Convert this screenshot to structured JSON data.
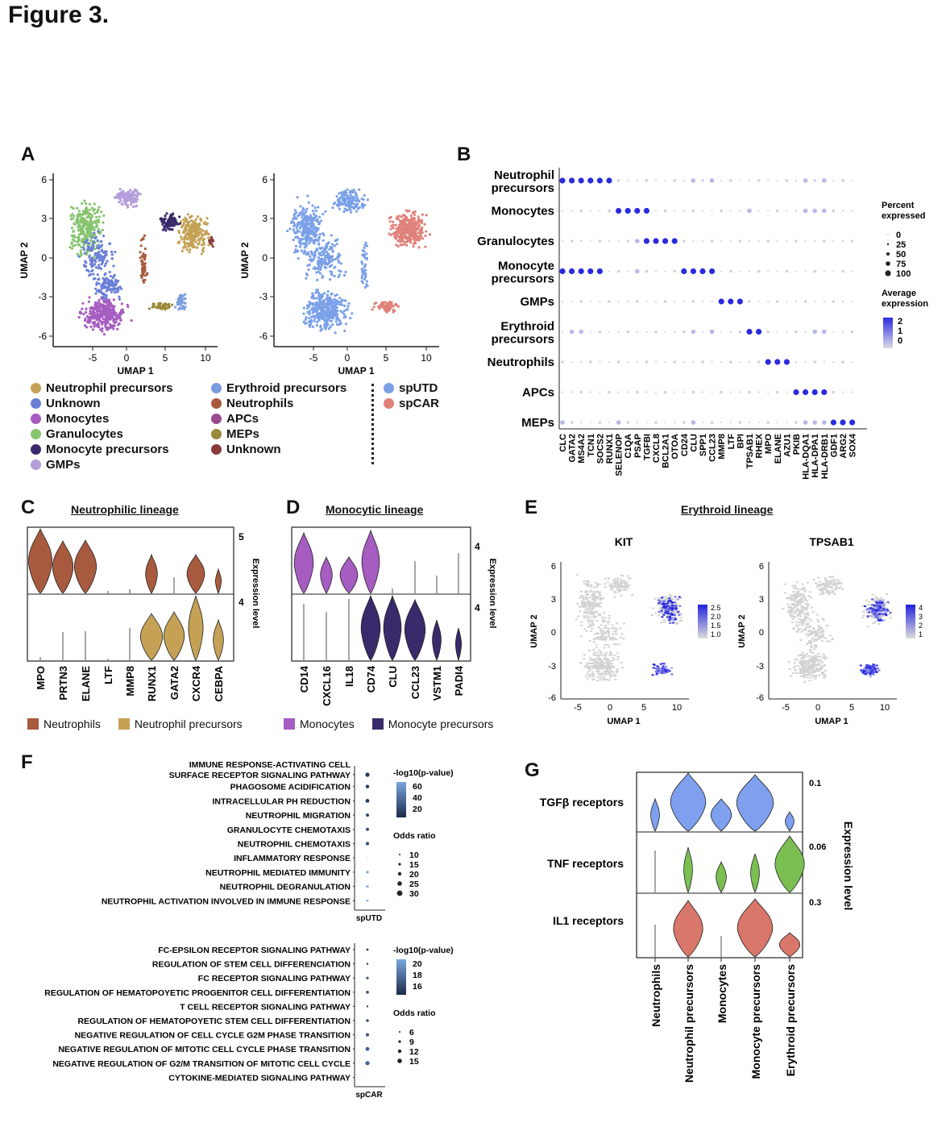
{
  "figure_title": "Figure 3.",
  "panel_labels": {
    "a": "A",
    "b": "B",
    "c": "C",
    "d": "D",
    "e": "E",
    "f": "F",
    "g": "G"
  },
  "colors": {
    "neutrophil_precursors": "#c4a155",
    "unknown": "#6a7fd6",
    "monocytes": "#a65cc1",
    "granulocytes": "#86c46f",
    "monocyte_precursors": "#3a2a6b",
    "gmps": "#b39ddb",
    "erythroid_precursors": "#7a9de0",
    "neutrophils": "#a85a3e",
    "apcs": "#9c4a8f",
    "meps": "#9a8a3a",
    "unknown2": "#8a3a3a",
    "sputd": "#7aa0e8",
    "spcar": "#e0827a",
    "violin_blue": "#7ea0ee",
    "violin_green": "#7bbf52",
    "violin_red": "#d9776a",
    "feature_gray": "#d3d3d3",
    "feature_blue": "#2222dd"
  },
  "panel_a": {
    "umap_axis": {
      "xlabel": "UMAP 1",
      "ylabel": "UMAP 2",
      "xticks": [
        "-5",
        "0",
        "5",
        "10"
      ],
      "yticks": [
        "6",
        "3",
        "0",
        "-3",
        "-6"
      ]
    },
    "legend_clusters_col1": [
      "Neutrophil precursors",
      "Unknown",
      "Monocytes",
      "Granulocytes",
      "Monocyte precursors",
      "GMPs"
    ],
    "legend_clusters_col2": [
      "Erythroid precursors",
      "Neutrophils",
      "APCs",
      "MEPs",
      "Unknown"
    ],
    "legend_samples": [
      "spUTD",
      "spCAR"
    ]
  },
  "panel_b": {
    "rows": [
      "Neutrophil precursors",
      "Monocytes",
      "Granulocytes",
      "Monocyte precursors",
      "GMPs",
      "Erythroid precursors",
      "Neutrophils",
      "APCs",
      "MEPs"
    ],
    "genes": [
      "CLC",
      "GATA2",
      "MS4A2",
      "TCN1",
      "SOCS2",
      "RUNX1",
      "SELENOP",
      "C1QA",
      "PSAP",
      "TGFBI",
      "CXCL8",
      "BCL2A1",
      "OTOA",
      "CD24",
      "CLU",
      "SPP1",
      "CCL23",
      "MMP8",
      "LTF",
      "BPI",
      "TPSAB1",
      "RHEX",
      "MPO",
      "ELANE",
      "AZU1",
      "PKIB",
      "HLA-DQA1",
      "HLA-DPA1",
      "HLA-DRB1",
      "GDF1",
      "ARG2",
      "SOX4"
    ],
    "size_legend_title": "Percent expressed",
    "size_legend": [
      "0",
      "25",
      "50",
      "75",
      "100"
    ],
    "color_legend_title": "Average expression",
    "color_legend": [
      "2",
      "1",
      "0"
    ]
  },
  "panel_c": {
    "title": "Neutrophilic lineage",
    "genes": [
      "MPO",
      "PRTN3",
      "ELANE",
      "LTF",
      "MMP8",
      "RUNX1",
      "GATA2",
      "CXCR4",
      "CEBPA"
    ],
    "top_scale": "5",
    "bottom_scale": "4",
    "ylabel": "Expression level",
    "legend": [
      "Neutrophils",
      "Neutrophil precursors"
    ]
  },
  "panel_d": {
    "title": "Monocytic lineage",
    "genes": [
      "CD14",
      "CXCL16",
      "IL18",
      "CD74",
      "CLU",
      "CCL23",
      "VSTM1",
      "PADI4"
    ],
    "top_scale": "4",
    "bottom_scale": "4",
    "ylabel": "Expression level",
    "legend": [
      "Monocytes",
      "Monocyte precursors"
    ]
  },
  "panel_e": {
    "title": "Erythroid lineage",
    "plots": [
      {
        "gene": "KIT",
        "scale": [
          "2.5",
          "2.0",
          "1.5",
          "1.0"
        ]
      },
      {
        "gene": "TPSAB1",
        "scale": [
          "4",
          "3",
          "2",
          "1"
        ]
      }
    ]
  },
  "panel_f": {
    "top": {
      "terms": [
        "IMMUNE RESPONSE-ACTIVATING CELL\nSURFACE RECEPTOR SIGNALING PATHWAY",
        "PHAGOSOME ACIDIFICATION",
        "INTRACELLULAR PH REDUCTION",
        "NEUTROPHIL MIGRATION",
        "GRANULOCYTE CHEMOTAXIS",
        "NEUTROPHIL CHEMOTAXIS",
        "INFLAMMATORY RESPONSE",
        "NEUTROPHIL MEDIATED IMMUNITY",
        "NEUTROPHIL DEGRANULATION",
        "NEUTROPHIL ACTIVATION INVOLVED IN IMMUNE RESPONSE"
      ],
      "xlabel": "spUTD",
      "color_title": "-log10(p-value)",
      "color_ticks": [
        "60",
        "40",
        "20"
      ],
      "size_title": "Odds ratio",
      "size_ticks": [
        "10",
        "15",
        "20",
        "25",
        "30"
      ]
    },
    "bottom": {
      "terms": [
        "FC-EPSILON RECEPTOR SIGNALING PATHWAY",
        "REGULATION OF STEM CELL DIFFERENCIATION",
        "FC RECEPTOR SIGNALING PATHWAY",
        "REGULATION OF HEMATOPOYETIC PROGENITOR CELL DIFFERENTIATION",
        "T CELL RECEPTOR SIGNALING PATHWAY",
        "REGULATION OF HEMATOPOYETIC STEM CELL DIFFERENTIATION",
        "NEGATIVE REGULATION OF CELL CYCLE G2M PHASE TRANSITION",
        "NEGATIVE REGULATION OF MITOTIC CELL CYCLE PHASE TRANSITION",
        "NEGATIVE REGULATION OF G2/M TRANSITION OF MITOTIC CELL CYCLE",
        "CYTOKINE-MEDIATED SIGNALING PATHWAY"
      ],
      "xlabel": "spCAR",
      "color_title": "-log10(p-value)",
      "color_ticks": [
        "20",
        "18",
        "16"
      ],
      "size_title": "Odds ratio",
      "size_ticks": [
        "6",
        "9",
        "12",
        "15"
      ]
    }
  },
  "panel_g": {
    "rows": [
      "TGFβ receptors",
      "TNF receptors",
      "IL1 receptors"
    ],
    "scales": [
      "0.1",
      "0.06",
      "0.3"
    ],
    "categories": [
      "Neutrophils",
      "Neutrophil precursors",
      "Monocytes",
      "Monocyte precursors",
      "Erythroid precursors"
    ],
    "ylabel": "Expression level"
  }
}
